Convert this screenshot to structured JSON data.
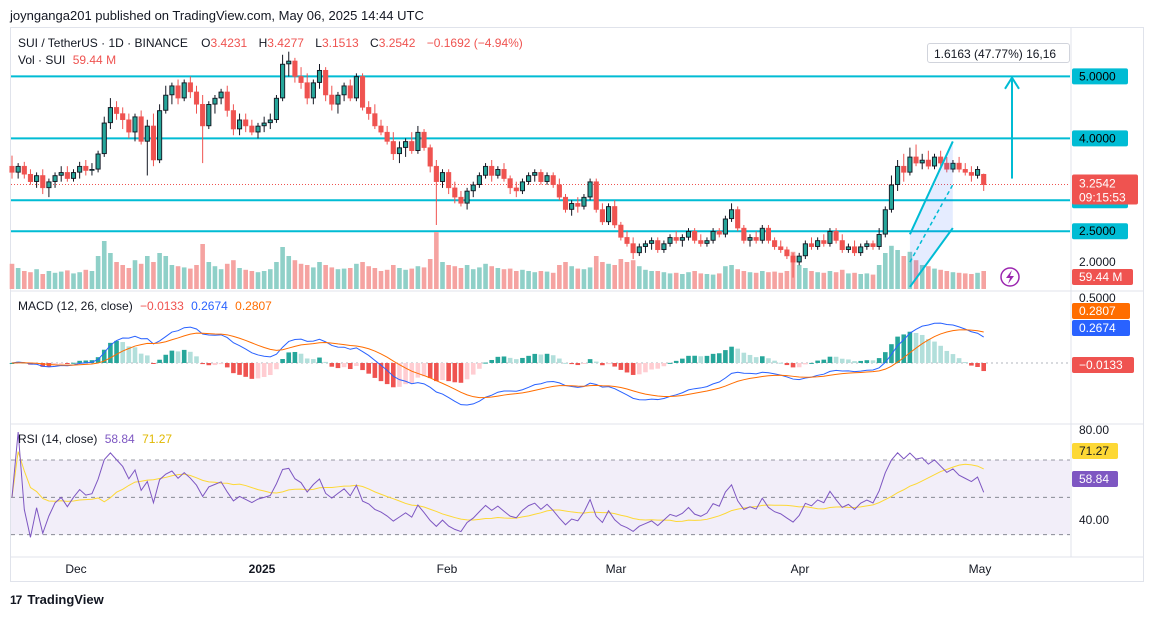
{
  "header": {
    "publisher_line": "joynganga201 published on TradingView.com, May 06, 2025 14:44 UTC"
  },
  "footer": {
    "brand": "TradingView",
    "logo_mark": "17"
  },
  "legend": {
    "symbol": "SUI / TetherUS · 1D · BINANCE",
    "o_label": "O",
    "o": "3.4231",
    "h_label": "H",
    "h": "3.4277",
    "l_label": "L",
    "l": "3.1513",
    "c_label": "C",
    "c": "3.2542",
    "change": "−0.1692 (−4.94%)",
    "vol_label": "Vol · SUI",
    "vol": "59.44 M"
  },
  "measure_tooltip": "1.6163 (47.77%) 16,16",
  "colors": {
    "up": "#26a69a",
    "down": "#ef5350",
    "level": "#00bcd4",
    "macd": "#2962ff",
    "signal": "#ff6d00",
    "rsi": "#7e57c2",
    "rsi_ma": "#fdd835",
    "up_vol": "#8fd0c8",
    "down_vol": "#f5a3a1"
  },
  "price_axis": {
    "levels": [
      "5.0000",
      "4.0000",
      "3.0000",
      "2.5000"
    ],
    "plain": [
      "2.0000"
    ],
    "current": "3.2542",
    "countdown": "09:15:53",
    "volume": "59.44 M"
  },
  "macd_legend": {
    "label": "MACD (12, 26, close)",
    "hist": "−0.0133",
    "macd": "0.2674",
    "signal": "0.2807"
  },
  "macd_axis": {
    "top": "0.5000",
    "signal": "0.2807",
    "macd": "0.2674",
    "hist": "−0.0133"
  },
  "rsi_legend": {
    "label": "RSI (14, close)",
    "rsi": "58.84",
    "ma": "71.27"
  },
  "rsi_axis": {
    "top": "80.00",
    "bottom": "40.00",
    "ma": "71.27",
    "rsi": "58.84"
  },
  "time_axis": [
    "Dec",
    "2025",
    "Feb",
    "Mar",
    "Apr",
    "May"
  ],
  "chart_data": {
    "type": "candlestick",
    "symbol": "SUI / TetherUS",
    "interval": "1D",
    "horizontal_levels": [
      5.0,
      4.0,
      3.0,
      2.5
    ],
    "price_range": [
      1.55,
      5.75
    ],
    "candles_ohlc": [
      [
        3.55,
        3.72,
        3.35,
        3.45
      ],
      [
        3.45,
        3.6,
        3.35,
        3.55
      ],
      [
        3.55,
        3.62,
        3.35,
        3.42
      ],
      [
        3.42,
        3.5,
        3.25,
        3.3
      ],
      [
        3.3,
        3.45,
        3.2,
        3.4
      ],
      [
        3.4,
        3.5,
        3.1,
        3.2
      ],
      [
        3.2,
        3.35,
        3.05,
        3.3
      ],
      [
        3.3,
        3.45,
        3.2,
        3.4
      ],
      [
        3.4,
        3.55,
        3.3,
        3.45
      ],
      [
        3.45,
        3.55,
        3.3,
        3.35
      ],
      [
        3.35,
        3.5,
        3.3,
        3.45
      ],
      [
        3.45,
        3.62,
        3.35,
        3.55
      ],
      [
        3.55,
        3.65,
        3.4,
        3.48
      ],
      [
        3.48,
        3.6,
        3.4,
        3.5
      ],
      [
        3.5,
        3.8,
        3.45,
        3.75
      ],
      [
        3.75,
        4.35,
        3.7,
        4.25
      ],
      [
        4.25,
        4.65,
        4.15,
        4.5
      ],
      [
        4.5,
        4.6,
        4.3,
        4.4
      ],
      [
        4.4,
        4.5,
        4.15,
        4.3
      ],
      [
        4.3,
        4.4,
        4.0,
        4.1
      ],
      [
        4.1,
        4.4,
        3.95,
        4.35
      ],
      [
        4.35,
        4.45,
        3.9,
        3.95
      ],
      [
        3.95,
        4.3,
        3.4,
        4.2
      ],
      [
        4.2,
        4.4,
        3.55,
        3.65
      ],
      [
        3.65,
        4.55,
        3.6,
        4.45
      ],
      [
        4.45,
        4.85,
        4.4,
        4.7
      ],
      [
        4.7,
        4.9,
        4.55,
        4.85
      ],
      [
        4.85,
        4.95,
        4.55,
        4.65
      ],
      [
        4.65,
        4.95,
        4.6,
        4.9
      ],
      [
        4.9,
        5.0,
        4.65,
        4.75
      ],
      [
        4.75,
        4.85,
        4.4,
        4.55
      ],
      [
        4.55,
        4.7,
        3.6,
        4.2
      ],
      [
        4.2,
        4.6,
        4.15,
        4.55
      ],
      [
        4.55,
        4.7,
        4.4,
        4.65
      ],
      [
        4.65,
        4.8,
        4.55,
        4.75
      ],
      [
        4.75,
        4.85,
        4.35,
        4.45
      ],
      [
        4.45,
        4.55,
        4.05,
        4.15
      ],
      [
        4.15,
        4.4,
        4.05,
        4.3
      ],
      [
        4.3,
        4.4,
        4.1,
        4.2
      ],
      [
        4.2,
        4.3,
        4.05,
        4.1
      ],
      [
        4.1,
        4.25,
        4.0,
        4.2
      ],
      [
        4.2,
        4.35,
        4.1,
        4.25
      ],
      [
        4.25,
        4.4,
        4.15,
        4.3
      ],
      [
        4.3,
        4.7,
        4.25,
        4.65
      ],
      [
        4.65,
        5.35,
        4.6,
        5.2
      ],
      [
        5.2,
        5.4,
        5.0,
        5.25
      ],
      [
        5.25,
        5.3,
        4.9,
        5.0
      ],
      [
        5.0,
        5.15,
        4.8,
        4.9
      ],
      [
        4.9,
        5.05,
        4.55,
        4.65
      ],
      [
        4.65,
        4.95,
        4.55,
        4.9
      ],
      [
        4.9,
        5.2,
        4.8,
        5.1
      ],
      [
        5.1,
        5.15,
        4.6,
        4.7
      ],
      [
        4.7,
        4.85,
        4.45,
        4.55
      ],
      [
        4.55,
        4.75,
        4.4,
        4.7
      ],
      [
        4.7,
        4.9,
        4.6,
        4.85
      ],
      [
        4.85,
        4.95,
        4.6,
        4.65
      ],
      [
        4.65,
        5.05,
        4.6,
        5.0
      ],
      [
        5.0,
        5.05,
        4.45,
        4.5
      ],
      [
        4.5,
        4.6,
        4.3,
        4.4
      ],
      [
        4.4,
        4.55,
        4.15,
        4.2
      ],
      [
        4.2,
        4.3,
        4.05,
        4.1
      ],
      [
        4.1,
        4.2,
        3.9,
        3.95
      ],
      [
        3.95,
        4.1,
        3.65,
        3.75
      ],
      [
        3.75,
        3.95,
        3.6,
        3.85
      ],
      [
        3.85,
        4.0,
        3.7,
        3.95
      ],
      [
        3.95,
        4.1,
        3.75,
        3.8
      ],
      [
        3.8,
        4.2,
        3.75,
        4.1
      ],
      [
        4.1,
        4.15,
        3.8,
        3.85
      ],
      [
        3.85,
        3.9,
        3.45,
        3.55
      ],
      [
        3.55,
        3.65,
        2.6,
        3.3
      ],
      [
        3.3,
        3.5,
        3.2,
        3.45
      ],
      [
        3.45,
        3.5,
        3.1,
        3.2
      ],
      [
        3.2,
        3.3,
        2.95,
        3.05
      ],
      [
        3.05,
        3.15,
        2.9,
        2.95
      ],
      [
        2.95,
        3.2,
        2.85,
        3.15
      ],
      [
        3.15,
        3.3,
        3.05,
        3.25
      ],
      [
        3.25,
        3.45,
        3.2,
        3.4
      ],
      [
        3.4,
        3.6,
        3.35,
        3.55
      ],
      [
        3.55,
        3.65,
        3.3,
        3.4
      ],
      [
        3.4,
        3.55,
        3.35,
        3.5
      ],
      [
        3.5,
        3.6,
        3.3,
        3.35
      ],
      [
        3.35,
        3.4,
        3.1,
        3.2
      ],
      [
        3.2,
        3.3,
        3.05,
        3.15
      ],
      [
        3.15,
        3.35,
        3.1,
        3.3
      ],
      [
        3.3,
        3.45,
        3.25,
        3.4
      ],
      [
        3.4,
        3.5,
        3.3,
        3.45
      ],
      [
        3.45,
        3.5,
        3.25,
        3.3
      ],
      [
        3.3,
        3.45,
        3.25,
        3.4
      ],
      [
        3.4,
        3.45,
        3.2,
        3.25
      ],
      [
        3.25,
        3.35,
        3.0,
        3.05
      ],
      [
        3.05,
        3.1,
        2.8,
        2.85
      ],
      [
        2.85,
        3.0,
        2.75,
        2.95
      ],
      [
        2.95,
        3.05,
        2.8,
        2.9
      ],
      [
        2.9,
        3.1,
        2.85,
        3.05
      ],
      [
        3.05,
        3.35,
        3.0,
        3.3
      ],
      [
        3.3,
        3.35,
        2.8,
        2.85
      ],
      [
        2.85,
        2.95,
        2.6,
        2.65
      ],
      [
        2.65,
        2.95,
        2.6,
        2.9
      ],
      [
        2.9,
        3.0,
        2.55,
        2.6
      ],
      [
        2.6,
        2.65,
        2.35,
        2.4
      ],
      [
        2.4,
        2.5,
        2.25,
        2.3
      ],
      [
        2.3,
        2.4,
        2.05,
        2.15
      ],
      [
        2.15,
        2.3,
        2.1,
        2.25
      ],
      [
        2.25,
        2.35,
        2.15,
        2.3
      ],
      [
        2.3,
        2.4,
        2.2,
        2.35
      ],
      [
        2.35,
        2.4,
        2.15,
        2.2
      ],
      [
        2.2,
        2.35,
        2.15,
        2.3
      ],
      [
        2.3,
        2.45,
        2.25,
        2.4
      ],
      [
        2.4,
        2.5,
        2.3,
        2.35
      ],
      [
        2.35,
        2.45,
        2.25,
        2.4
      ],
      [
        2.4,
        2.55,
        2.35,
        2.5
      ],
      [
        2.5,
        2.55,
        2.3,
        2.35
      ],
      [
        2.35,
        2.45,
        2.25,
        2.3
      ],
      [
        2.3,
        2.4,
        2.25,
        2.35
      ],
      [
        2.35,
        2.55,
        2.3,
        2.5
      ],
      [
        2.5,
        2.55,
        2.4,
        2.45
      ],
      [
        2.45,
        2.75,
        2.4,
        2.7
      ],
      [
        2.7,
        2.95,
        2.65,
        2.85
      ],
      [
        2.85,
        2.9,
        2.5,
        2.55
      ],
      [
        2.55,
        2.6,
        2.3,
        2.35
      ],
      [
        2.35,
        2.45,
        2.25,
        2.4
      ],
      [
        2.4,
        2.5,
        2.3,
        2.35
      ],
      [
        2.35,
        2.6,
        2.3,
        2.55
      ],
      [
        2.55,
        2.6,
        2.3,
        2.35
      ],
      [
        2.35,
        2.4,
        2.2,
        2.25
      ],
      [
        2.25,
        2.35,
        2.15,
        2.2
      ],
      [
        2.2,
        2.25,
        2.05,
        2.1
      ],
      [
        2.1,
        2.15,
        1.75,
        2.0
      ],
      [
        2.0,
        2.15,
        1.95,
        2.1
      ],
      [
        2.1,
        2.35,
        2.05,
        2.3
      ],
      [
        2.3,
        2.4,
        2.2,
        2.25
      ],
      [
        2.25,
        2.4,
        2.2,
        2.35
      ],
      [
        2.35,
        2.45,
        2.25,
        2.3
      ],
      [
        2.3,
        2.55,
        2.25,
        2.5
      ],
      [
        2.5,
        2.55,
        2.3,
        2.35
      ],
      [
        2.35,
        2.45,
        2.15,
        2.2
      ],
      [
        2.2,
        2.3,
        2.15,
        2.25
      ],
      [
        2.25,
        2.35,
        2.1,
        2.15
      ],
      [
        2.15,
        2.3,
        2.1,
        2.25
      ],
      [
        2.25,
        2.35,
        2.2,
        2.3
      ],
      [
        2.3,
        2.35,
        2.2,
        2.25
      ],
      [
        2.25,
        2.55,
        2.2,
        2.45
      ],
      [
        2.45,
        2.9,
        2.4,
        2.85
      ],
      [
        2.85,
        3.4,
        2.8,
        3.25
      ],
      [
        3.25,
        3.65,
        3.15,
        3.55
      ],
      [
        3.55,
        3.75,
        3.3,
        3.45
      ],
      [
        3.45,
        3.85,
        3.4,
        3.7
      ],
      [
        3.7,
        3.9,
        3.55,
        3.6
      ],
      [
        3.6,
        3.75,
        3.5,
        3.65
      ],
      [
        3.65,
        3.8,
        3.5,
        3.55
      ],
      [
        3.55,
        3.75,
        3.5,
        3.7
      ],
      [
        3.7,
        3.8,
        3.55,
        3.6
      ],
      [
        3.6,
        3.7,
        3.45,
        3.5
      ],
      [
        3.5,
        3.65,
        3.45,
        3.6
      ],
      [
        3.6,
        3.7,
        3.45,
        3.5
      ],
      [
        3.5,
        3.6,
        3.4,
        3.45
      ],
      [
        3.45,
        3.55,
        3.3,
        3.4
      ],
      [
        3.4,
        3.55,
        3.35,
        3.5
      ],
      [
        3.42,
        3.43,
        3.15,
        3.25
      ]
    ],
    "volume_level_0_to_1": [
      0.42,
      0.35,
      0.3,
      0.28,
      0.33,
      0.25,
      0.3,
      0.27,
      0.29,
      0.31,
      0.26,
      0.28,
      0.32,
      0.3,
      0.55,
      0.8,
      0.6,
      0.45,
      0.4,
      0.35,
      0.48,
      0.42,
      0.55,
      0.45,
      0.6,
      0.55,
      0.4,
      0.38,
      0.36,
      0.34,
      0.4,
      0.75,
      0.45,
      0.38,
      0.33,
      0.42,
      0.48,
      0.35,
      0.32,
      0.3,
      0.28,
      0.3,
      0.33,
      0.45,
      0.7,
      0.55,
      0.48,
      0.42,
      0.4,
      0.36,
      0.45,
      0.4,
      0.36,
      0.33,
      0.34,
      0.35,
      0.42,
      0.45,
      0.38,
      0.35,
      0.3,
      0.32,
      0.4,
      0.35,
      0.32,
      0.34,
      0.38,
      0.36,
      0.5,
      0.95,
      0.45,
      0.4,
      0.38,
      0.35,
      0.4,
      0.33,
      0.36,
      0.42,
      0.38,
      0.35,
      0.33,
      0.34,
      0.3,
      0.32,
      0.3,
      0.28,
      0.3,
      0.29,
      0.27,
      0.4,
      0.45,
      0.38,
      0.34,
      0.33,
      0.36,
      0.55,
      0.45,
      0.42,
      0.4,
      0.5,
      0.45,
      0.48,
      0.38,
      0.32,
      0.3,
      0.3,
      0.28,
      0.26,
      0.27,
      0.25,
      0.28,
      0.3,
      0.26,
      0.25,
      0.24,
      0.26,
      0.38,
      0.4,
      0.33,
      0.3,
      0.28,
      0.27,
      0.3,
      0.28,
      0.29,
      0.27,
      0.3,
      0.62,
      0.4,
      0.35,
      0.3,
      0.28,
      0.27,
      0.3,
      0.28,
      0.32,
      0.26,
      0.27,
      0.25,
      0.26,
      0.24,
      0.4,
      0.6,
      0.72,
      0.65,
      0.55,
      0.62,
      0.48,
      0.4,
      0.38,
      0.34,
      0.32,
      0.3,
      0.28,
      0.27,
      0.26,
      0.25,
      0.27,
      0.3
    ],
    "current_price": 3.2542,
    "macd": {
      "params": "12, 26, close",
      "macd": 0.2674,
      "signal": 0.2807,
      "histogram": -0.0133
    },
    "rsi": {
      "params": "14, close",
      "rsi": 58.84,
      "ma": 71.27,
      "bands": [
        70,
        50,
        30
      ]
    },
    "x_axis_labels": [
      "Dec",
      "2025",
      "Feb",
      "Mar",
      "Apr",
      "May"
    ]
  }
}
